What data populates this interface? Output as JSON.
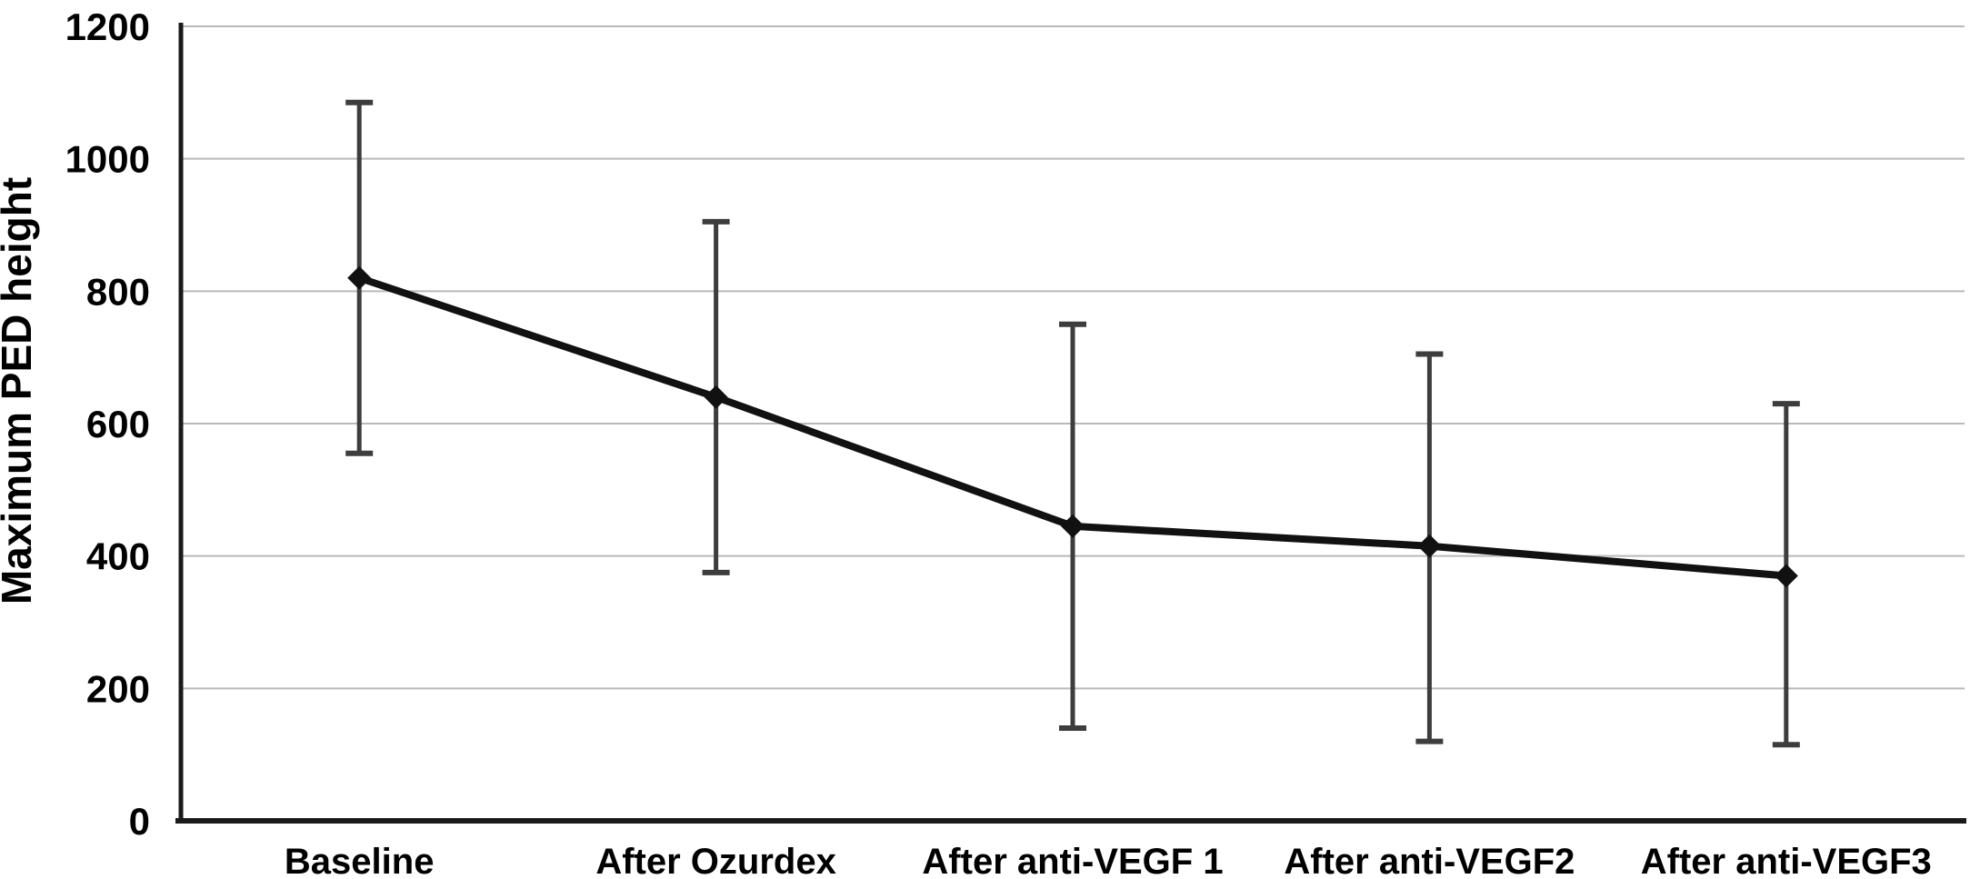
{
  "chart_data": {
    "type": "line",
    "title": "",
    "xlabel": "",
    "ylabel": "Maximum PED height",
    "categories": [
      "Baseline",
      "After Ozurdex",
      "After anti-VEGF 1",
      "After anti-VEGF2",
      "After anti-VEGF3"
    ],
    "series": [
      {
        "name": "Maximum PED height",
        "values": [
          820,
          640,
          445,
          415,
          370
        ],
        "error_low": [
          555,
          375,
          140,
          120,
          115
        ],
        "error_high": [
          1085,
          905,
          750,
          705,
          630
        ]
      }
    ],
    "ylim": [
      0,
      1200
    ],
    "yticks": [
      0,
      200,
      400,
      600,
      800,
      1000,
      1200
    ],
    "grid": "horizontal",
    "legend": "none",
    "marker": "diamond",
    "error_bars": true,
    "colors": {
      "line": "#111111",
      "marker": "#111111",
      "error_bar": "#3d3d3d",
      "gridline": "#b9b9b9",
      "axis": "#1a1a1a",
      "text": "#000000",
      "background": "#ffffff"
    }
  }
}
